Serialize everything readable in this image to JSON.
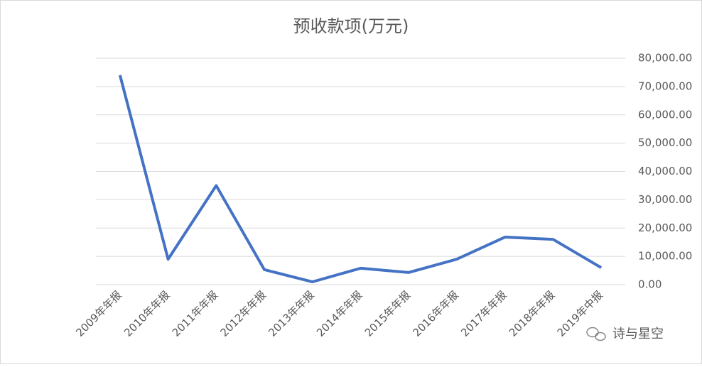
{
  "chart_data": {
    "type": "line",
    "title": "预收款项(万元)",
    "categories": [
      "2009年年报",
      "2010年年报",
      "2011年年报",
      "2012年年报",
      "2013年年报",
      "2014年年报",
      "2015年年报",
      "2016年年报",
      "2017年年报",
      "2018年年报",
      "2019年中报"
    ],
    "values": [
      74000,
      9000,
      35000,
      5300,
      1000,
      5800,
      4300,
      9000,
      16800,
      16000,
      6000
    ],
    "color": "#4472c4",
    "ylim": [
      0,
      80000
    ],
    "yticks": [
      {
        "value": 0,
        "label": "0.00"
      },
      {
        "value": 10000,
        "label": "10,000.00"
      },
      {
        "value": 20000,
        "label": "20,000.00"
      },
      {
        "value": 30000,
        "label": "30,000.00"
      },
      {
        "value": 40000,
        "label": "40,000.00"
      },
      {
        "value": 50000,
        "label": "50,000.00"
      },
      {
        "value": 60000,
        "label": "60,000.00"
      },
      {
        "value": 70000,
        "label": "70,000.00"
      },
      {
        "value": 80000,
        "label": "80,000.00"
      }
    ],
    "grid": true,
    "y_axis_side": "right",
    "watermark": "诗与星空"
  }
}
